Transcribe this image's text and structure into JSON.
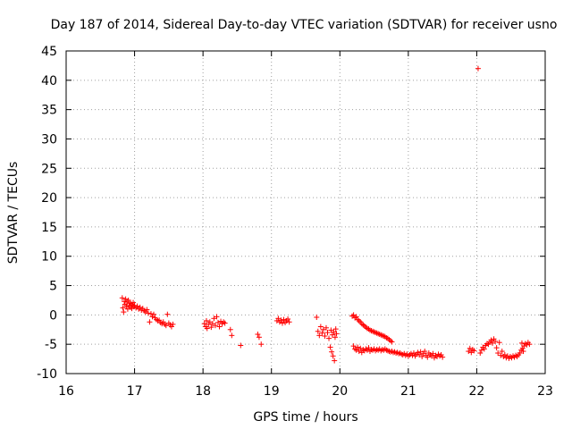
{
  "chart_data": {
    "type": "scatter",
    "title": "Day 187 of 2014, Sidereal Day-to-day VTEC variation (SDTVAR) for receiver usno",
    "xlabel": "GPS time / hours",
    "ylabel": "SDTVAR / TECUs",
    "xlim": [
      16,
      23
    ],
    "ylim": [
      -10,
      45
    ],
    "xticks": [
      16,
      17,
      18,
      19,
      20,
      21,
      22,
      23
    ],
    "yticks": [
      -10,
      -5,
      0,
      5,
      10,
      15,
      20,
      25,
      30,
      35,
      40,
      45
    ],
    "xtick_labels": [
      "16",
      "17",
      "18",
      "19",
      "20",
      "21",
      "22",
      "23"
    ],
    "ytick_labels": [
      "-10",
      "-5",
      "0",
      "5",
      "10",
      "15",
      "20",
      "25",
      "30",
      "35",
      "40",
      "45"
    ],
    "grid": true,
    "marker": "plus",
    "color": "#ff0000",
    "series": [
      {
        "name": "SDTVAR",
        "points": [
          [
            16.82,
            2.9
          ],
          [
            16.83,
            1.2
          ],
          [
            16.84,
            0.5
          ],
          [
            16.85,
            2.3
          ],
          [
            16.86,
            1.8
          ],
          [
            16.87,
            2.7
          ],
          [
            16.88,
            1.5
          ],
          [
            16.89,
            2.2
          ],
          [
            16.9,
            1.0
          ],
          [
            16.91,
            2.5
          ],
          [
            16.92,
            1.6
          ],
          [
            16.93,
            2.0
          ],
          [
            16.94,
            1.3
          ],
          [
            16.95,
            1.9
          ],
          [
            16.96,
            1.1
          ],
          [
            16.97,
            1.7
          ],
          [
            16.98,
            2.1
          ],
          [
            16.99,
            1.4
          ],
          [
            17.0,
            1.6
          ],
          [
            17.02,
            1.2
          ],
          [
            17.04,
            1.5
          ],
          [
            17.06,
            1.0
          ],
          [
            17.08,
            1.3
          ],
          [
            17.1,
            0.8
          ],
          [
            17.12,
            1.1
          ],
          [
            17.14,
            0.7
          ],
          [
            17.16,
            0.5
          ],
          [
            17.18,
            0.9
          ],
          [
            17.2,
            0.3
          ],
          [
            17.22,
            -1.2
          ],
          [
            17.24,
            0.2
          ],
          [
            17.26,
            -0.3
          ],
          [
            17.28,
            0.1
          ],
          [
            17.3,
            -0.5
          ],
          [
            17.32,
            -0.8
          ],
          [
            17.34,
            -1.0
          ],
          [
            17.36,
            -0.9
          ],
          [
            17.38,
            -1.3
          ],
          [
            17.4,
            -1.5
          ],
          [
            17.42,
            -1.2
          ],
          [
            17.44,
            -1.6
          ],
          [
            17.46,
            -1.8
          ],
          [
            17.48,
            0.1
          ],
          [
            17.5,
            -1.4
          ],
          [
            17.52,
            -1.7
          ],
          [
            17.54,
            -2.0
          ],
          [
            17.56,
            -1.6
          ],
          [
            18.02,
            -1.5
          ],
          [
            18.04,
            -2.0
          ],
          [
            18.05,
            -1.0
          ],
          [
            18.06,
            -2.3
          ],
          [
            18.08,
            -1.6
          ],
          [
            18.1,
            -1.2
          ],
          [
            18.12,
            -2.1
          ],
          [
            18.14,
            -1.5
          ],
          [
            18.16,
            -0.6
          ],
          [
            18.18,
            -1.8
          ],
          [
            18.2,
            -0.3
          ],
          [
            18.22,
            -1.3
          ],
          [
            18.24,
            -2.0
          ],
          [
            18.26,
            -1.1
          ],
          [
            18.28,
            -1.5
          ],
          [
            18.3,
            -1.2
          ],
          [
            18.32,
            -1.4
          ],
          [
            18.4,
            -2.5
          ],
          [
            18.42,
            -3.5
          ],
          [
            18.55,
            -5.2
          ],
          [
            18.8,
            -3.3
          ],
          [
            18.82,
            -3.8
          ],
          [
            18.85,
            -5.0
          ],
          [
            19.08,
            -1.0
          ],
          [
            19.1,
            -0.6
          ],
          [
            19.12,
            -1.2
          ],
          [
            19.14,
            -0.9
          ],
          [
            19.16,
            -1.4
          ],
          [
            19.18,
            -0.8
          ],
          [
            19.2,
            -1.3
          ],
          [
            19.22,
            -1.0
          ],
          [
            19.24,
            -0.7
          ],
          [
            19.26,
            -1.2
          ],
          [
            19.66,
            -0.4
          ],
          [
            19.68,
            -2.8
          ],
          [
            19.7,
            -3.5
          ],
          [
            19.72,
            -2.0
          ],
          [
            19.74,
            -3.1
          ],
          [
            19.76,
            -2.5
          ],
          [
            19.78,
            -3.6
          ],
          [
            19.8,
            -2.2
          ],
          [
            19.82,
            -3.0
          ],
          [
            19.84,
            -4.0
          ],
          [
            19.86,
            -5.5
          ],
          [
            19.87,
            -2.6
          ],
          [
            19.88,
            -6.3
          ],
          [
            19.89,
            -3.4
          ],
          [
            19.9,
            -7.0
          ],
          [
            19.91,
            -2.9
          ],
          [
            19.92,
            -7.8
          ],
          [
            19.93,
            -3.8
          ],
          [
            19.94,
            -2.4
          ],
          [
            19.95,
            -3.2
          ],
          [
            20.18,
            -0.2
          ],
          [
            20.2,
            0.0
          ],
          [
            20.22,
            -0.5
          ],
          [
            20.24,
            -0.3
          ],
          [
            20.26,
            -0.8
          ],
          [
            20.28,
            -1.0
          ],
          [
            20.3,
            -1.2
          ],
          [
            20.32,
            -1.5
          ],
          [
            20.34,
            -1.7
          ],
          [
            20.36,
            -1.9
          ],
          [
            20.38,
            -2.1
          ],
          [
            20.4,
            -2.3
          ],
          [
            20.42,
            -2.4
          ],
          [
            20.44,
            -2.6
          ],
          [
            20.46,
            -2.7
          ],
          [
            20.48,
            -2.8
          ],
          [
            20.5,
            -2.9
          ],
          [
            20.52,
            -3.0
          ],
          [
            20.54,
            -3.1
          ],
          [
            20.56,
            -3.2
          ],
          [
            20.58,
            -3.3
          ],
          [
            20.6,
            -3.4
          ],
          [
            20.62,
            -3.5
          ],
          [
            20.64,
            -3.6
          ],
          [
            20.66,
            -3.7
          ],
          [
            20.68,
            -3.9
          ],
          [
            20.7,
            -4.0
          ],
          [
            20.72,
            -4.2
          ],
          [
            20.74,
            -4.4
          ],
          [
            20.76,
            -4.6
          ],
          [
            20.2,
            -5.3
          ],
          [
            20.22,
            -5.8
          ],
          [
            20.24,
            -6.0
          ],
          [
            20.26,
            -5.5
          ],
          [
            20.28,
            -6.2
          ],
          [
            20.3,
            -5.7
          ],
          [
            20.32,
            -6.4
          ],
          [
            20.34,
            -5.9
          ],
          [
            20.36,
            -6.1
          ],
          [
            20.38,
            -5.8
          ],
          [
            20.4,
            -6.0
          ],
          [
            20.42,
            -5.6
          ],
          [
            20.44,
            -6.2
          ],
          [
            20.46,
            -5.9
          ],
          [
            20.48,
            -6.0
          ],
          [
            20.5,
            -5.8
          ],
          [
            20.52,
            -6.1
          ],
          [
            20.54,
            -5.9
          ],
          [
            20.56,
            -6.0
          ],
          [
            20.58,
            -5.8
          ],
          [
            20.6,
            -6.1
          ],
          [
            20.62,
            -5.9
          ],
          [
            20.64,
            -6.0
          ],
          [
            20.66,
            -5.8
          ],
          [
            20.68,
            -6.0
          ],
          [
            20.7,
            -6.1
          ],
          [
            20.72,
            -6.2
          ],
          [
            20.74,
            -6.3
          ],
          [
            20.76,
            -6.2
          ],
          [
            20.78,
            -6.4
          ],
          [
            20.8,
            -6.3
          ],
          [
            20.82,
            -6.5
          ],
          [
            20.84,
            -6.4
          ],
          [
            20.86,
            -6.6
          ],
          [
            20.88,
            -6.5
          ],
          [
            20.9,
            -6.7
          ],
          [
            20.92,
            -6.8
          ],
          [
            20.94,
            -6.6
          ],
          [
            20.96,
            -6.9
          ],
          [
            20.98,
            -6.7
          ],
          [
            21.0,
            -7.0
          ],
          [
            21.02,
            -6.8
          ],
          [
            21.04,
            -6.6
          ],
          [
            21.06,
            -6.9
          ],
          [
            21.08,
            -6.5
          ],
          [
            21.1,
            -7.0
          ],
          [
            21.12,
            -6.7
          ],
          [
            21.14,
            -6.4
          ],
          [
            21.16,
            -6.8
          ],
          [
            21.18,
            -6.3
          ],
          [
            21.2,
            -7.1
          ],
          [
            21.22,
            -6.6
          ],
          [
            21.24,
            -6.2
          ],
          [
            21.26,
            -6.9
          ],
          [
            21.28,
            -7.2
          ],
          [
            21.3,
            -6.5
          ],
          [
            21.32,
            -6.8
          ],
          [
            21.34,
            -7.0
          ],
          [
            21.36,
            -6.6
          ],
          [
            21.38,
            -7.3
          ],
          [
            21.4,
            -6.9
          ],
          [
            21.42,
            -7.1
          ],
          [
            21.44,
            -6.7
          ],
          [
            21.46,
            -7.0
          ],
          [
            21.48,
            -6.8
          ],
          [
            21.5,
            -7.2
          ],
          [
            21.88,
            -6.2
          ],
          [
            21.9,
            -5.7
          ],
          [
            21.92,
            -6.4
          ],
          [
            21.94,
            -5.9
          ],
          [
            21.96,
            -6.1
          ],
          [
            22.02,
            42.0
          ],
          [
            22.05,
            -6.5
          ],
          [
            22.07,
            -6.0
          ],
          [
            22.09,
            -5.5
          ],
          [
            22.11,
            -5.8
          ],
          [
            22.13,
            -5.2
          ],
          [
            22.15,
            -4.9
          ],
          [
            22.17,
            -5.0
          ],
          [
            22.19,
            -4.6
          ],
          [
            22.21,
            -4.3
          ],
          [
            22.23,
            -4.8
          ],
          [
            22.25,
            -4.1
          ],
          [
            22.27,
            -4.5
          ],
          [
            22.29,
            -5.6
          ],
          [
            22.31,
            -6.5
          ],
          [
            22.33,
            -4.7
          ],
          [
            22.35,
            -6.9
          ],
          [
            22.37,
            -6.2
          ],
          [
            22.39,
            -7.1
          ],
          [
            22.41,
            -6.8
          ],
          [
            22.43,
            -7.3
          ],
          [
            22.45,
            -7.0
          ],
          [
            22.47,
            -7.4
          ],
          [
            22.49,
            -7.1
          ],
          [
            22.51,
            -7.3
          ],
          [
            22.53,
            -7.0
          ],
          [
            22.55,
            -7.2
          ],
          [
            22.57,
            -6.9
          ],
          [
            22.59,
            -7.1
          ],
          [
            22.61,
            -6.8
          ],
          [
            22.63,
            -6.5
          ],
          [
            22.65,
            -6.0
          ],
          [
            22.67,
            -5.7
          ],
          [
            22.69,
            -5.3
          ],
          [
            22.71,
            -4.9
          ],
          [
            22.73,
            -5.1
          ],
          [
            22.75,
            -4.7
          ],
          [
            22.77,
            -5.0
          ],
          [
            22.66,
            -4.8
          ],
          [
            22.68,
            -6.2
          ]
        ]
      }
    ]
  }
}
